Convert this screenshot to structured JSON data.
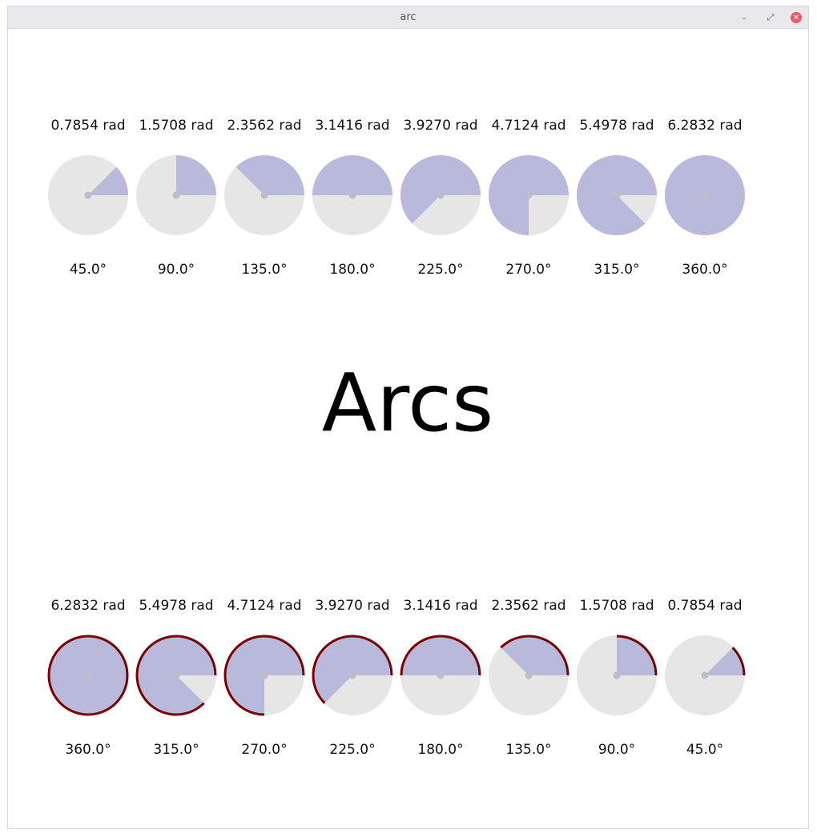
{
  "window": {
    "title": "arc",
    "minimize_glyph": "–",
    "maximize_glyph": "⤢",
    "close_glyph": "✕"
  },
  "heading": "Arcs",
  "colors": {
    "background_circle": "#e6e6e6",
    "pie_fill": "#b9badb",
    "center_dot": "#bdbdc8",
    "arc_stroke": "#7a0000",
    "text": "#111111"
  },
  "top_row": {
    "style": "pie",
    "items": [
      {
        "rad_label": "0.7854 rad",
        "deg_label": "45.0°",
        "degrees": 45
      },
      {
        "rad_label": "1.5708 rad",
        "deg_label": "90.0°",
        "degrees": 90
      },
      {
        "rad_label": "2.3562 rad",
        "deg_label": "135.0°",
        "degrees": 135
      },
      {
        "rad_label": "3.1416 rad",
        "deg_label": "180.0°",
        "degrees": 180
      },
      {
        "rad_label": "3.9270 rad",
        "deg_label": "225.0°",
        "degrees": 225
      },
      {
        "rad_label": "4.7124 rad",
        "deg_label": "270.0°",
        "degrees": 270
      },
      {
        "rad_label": "5.4978 rad",
        "deg_label": "315.0°",
        "degrees": 315
      },
      {
        "rad_label": "6.2832 rad",
        "deg_label": "360.0°",
        "degrees": 360
      }
    ]
  },
  "bottom_row": {
    "style": "pie-with-arc",
    "items": [
      {
        "rad_label": "6.2832 rad",
        "deg_label": "360.0°",
        "degrees": 360
      },
      {
        "rad_label": "5.4978 rad",
        "deg_label": "315.0°",
        "degrees": 315
      },
      {
        "rad_label": "4.7124 rad",
        "deg_label": "270.0°",
        "degrees": 270
      },
      {
        "rad_label": "3.9270 rad",
        "deg_label": "225.0°",
        "degrees": 225
      },
      {
        "rad_label": "3.1416 rad",
        "deg_label": "180.0°",
        "degrees": 180
      },
      {
        "rad_label": "2.3562 rad",
        "deg_label": "135.0°",
        "degrees": 135
      },
      {
        "rad_label": "1.5708 rad",
        "deg_label": "90.0°",
        "degrees": 90
      },
      {
        "rad_label": "0.7854 rad",
        "deg_label": "45.0°",
        "degrees": 45
      }
    ]
  }
}
